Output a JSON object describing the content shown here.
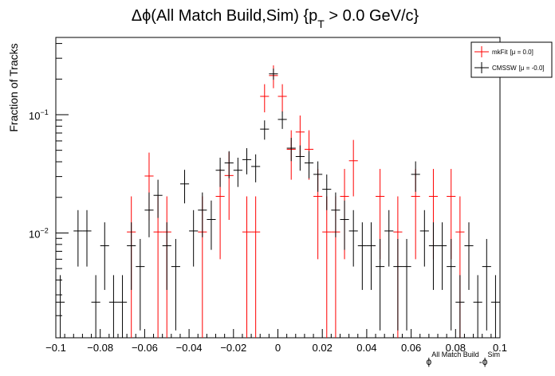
{
  "chart_data": {
    "type": "scatter",
    "title_main": "Δϕ(All Match Build,Sim) {p",
    "title_sub": "T",
    "title_tail": " > 0.0 GeV/c}",
    "ylabel": "Fraction of Tracks",
    "xlabel_main": "ϕ",
    "xlabel_sup1": "All Match Build",
    "xlabel_mid": "-ϕ",
    "xlabel_sup2": "Sim",
    "xlim": [
      -0.1,
      0.1
    ],
    "ylim": [
      0.0013,
      0.45
    ],
    "yscale": "log",
    "grid": false,
    "legend_position": "top-right",
    "x_ticks": [
      {
        "value": -0.1,
        "label": "−0.1"
      },
      {
        "value": -0.08,
        "label": "−0.08"
      },
      {
        "value": -0.06,
        "label": "−0.06"
      },
      {
        "value": -0.04,
        "label": "−0.04"
      },
      {
        "value": -0.02,
        "label": "−0.02"
      },
      {
        "value": 0,
        "label": "0"
      },
      {
        "value": 0.02,
        "label": "0.02"
      },
      {
        "value": 0.04,
        "label": "0.04"
      },
      {
        "value": 0.06,
        "label": "0.06"
      },
      {
        "value": 0.08,
        "label": "0.08"
      },
      {
        "value": 0.1,
        "label": "0.1"
      }
    ],
    "y_ticks": [
      {
        "value": 0.1,
        "base": "10",
        "exp": "−1"
      },
      {
        "value": 0.01,
        "base": "10",
        "exp": "−2"
      }
    ],
    "series": [
      {
        "name": "mkFit",
        "mu_label": "[μ =  0.0]",
        "color": "#ff0000",
        "x": [
          -0.066,
          -0.058,
          -0.054,
          -0.05,
          -0.034,
          -0.026,
          -0.022,
          -0.014,
          -0.01,
          -0.006,
          -0.002,
          0.002,
          0.006,
          0.01,
          0.014,
          0.018,
          0.022,
          0.026,
          0.03,
          0.034,
          0.046,
          0.054,
          0.062,
          0.07,
          0.078,
          0.082
        ],
        "y": [
          0.0102,
          0.0303,
          0.0102,
          0.0102,
          0.0102,
          0.0204,
          0.0306,
          0.0102,
          0.0102,
          0.1429,
          0.2143,
          0.1429,
          0.051,
          0.0714,
          0.051,
          0.0204,
          0.0102,
          0.0102,
          0.0204,
          0.0408,
          0.0204,
          0.0102,
          0.0204,
          0.0204,
          0.0204,
          0.0102
        ],
        "err": [
          0.0102,
          0.0175,
          0.0102,
          0.0102,
          0.0102,
          0.0144,
          0.0177,
          0.0102,
          0.0102,
          0.0382,
          0.0468,
          0.0382,
          0.0228,
          0.027,
          0.0228,
          0.0144,
          0.0102,
          0.0102,
          0.0144,
          0.0204,
          0.0144,
          0.0102,
          0.0144,
          0.0144,
          0.0144,
          0.0102
        ]
      },
      {
        "name": "CMSSW",
        "mu_label": "[μ = -0.0]",
        "color": "#000000",
        "x": [
          -0.098,
          -0.09,
          -0.086,
          -0.082,
          -0.078,
          -0.074,
          -0.07,
          -0.066,
          -0.062,
          -0.058,
          -0.054,
          -0.05,
          -0.046,
          -0.042,
          -0.038,
          -0.034,
          -0.03,
          -0.026,
          -0.022,
          -0.018,
          -0.014,
          -0.01,
          -0.006,
          -0.002,
          0.002,
          0.006,
          0.01,
          0.014,
          0.018,
          0.022,
          0.026,
          0.03,
          0.034,
          0.038,
          0.042,
          0.046,
          0.05,
          0.054,
          0.058,
          0.062,
          0.066,
          0.07,
          0.074,
          0.078,
          0.082,
          0.086,
          0.09,
          0.094,
          0.098
        ],
        "y": [
          0.0026,
          0.0104,
          0.0104,
          0.0026,
          0.0078,
          0.0026,
          0.0026,
          0.0078,
          0.0052,
          0.0156,
          0.0208,
          0.0078,
          0.0052,
          0.026,
          0.0104,
          0.0156,
          0.013,
          0.0339,
          0.0391,
          0.0339,
          0.0417,
          0.0365,
          0.0755,
          0.2214,
          0.0912,
          0.0521,
          0.0443,
          0.0391,
          0.0313,
          0.0234,
          0.0156,
          0.013,
          0.0104,
          0.0078,
          0.0078,
          0.0052,
          0.0104,
          0.0052,
          0.0052,
          0.0313,
          0.0104,
          0.0078,
          0.0078,
          0.0052,
          0.0026,
          0.0078,
          0.0026,
          0.0052,
          0.0026
        ],
        "err": [
          0.0018,
          0.0052,
          0.0052,
          0.0018,
          0.0045,
          0.0018,
          0.0018,
          0.0045,
          0.0037,
          0.0064,
          0.0074,
          0.0045,
          0.0037,
          0.0082,
          0.0052,
          0.0064,
          0.0058,
          0.0094,
          0.0101,
          0.0094,
          0.0104,
          0.0097,
          0.014,
          0.024,
          0.0154,
          0.0116,
          0.0107,
          0.0101,
          0.009,
          0.0078,
          0.0064,
          0.0058,
          0.0052,
          0.0045,
          0.0045,
          0.0037,
          0.0052,
          0.0037,
          0.0037,
          0.009,
          0.0052,
          0.0045,
          0.0045,
          0.0037,
          0.0018,
          0.0045,
          0.0018,
          0.0037,
          0.0018
        ]
      }
    ]
  }
}
